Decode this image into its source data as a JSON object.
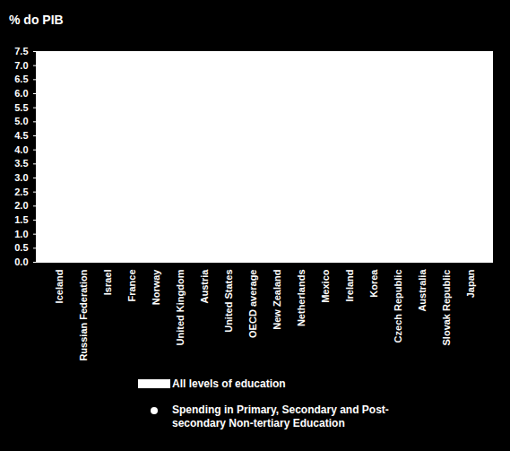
{
  "chart_data": {
    "type": "bar",
    "y_label": "% do PIB",
    "categories": [
      "Iceland",
      "Russian Federation",
      "Israel",
      "France",
      "Norway",
      "United Kingdom",
      "Austria",
      "United States",
      "OECD average",
      "New Zealand",
      "Netherlands",
      "Mexico",
      "Ireland",
      "Korea",
      "Czech Republic",
      "Australia",
      "Slovak Republic",
      "Japan"
    ],
    "series": [
      {
        "name": "All levels of education",
        "type": "bar",
        "color": "#ffffff",
        "values": [
          null,
          null,
          null,
          null,
          null,
          null,
          null,
          null,
          null,
          null,
          null,
          null,
          null,
          null,
          null,
          null,
          null,
          null
        ]
      },
      {
        "name": "Spending in Primary, Secondary and Post-secondary Non-tertiary Education",
        "type": "scatter",
        "marker": "circle",
        "color": "#ffffff",
        "values": [
          null,
          null,
          null,
          null,
          null,
          null,
          null,
          null,
          null,
          null,
          null,
          null,
          null,
          null,
          null,
          null,
          null,
          null
        ]
      }
    ],
    "ylim": [
      0,
      7.5
    ],
    "yticks": [
      {
        "value": 0,
        "label": "0.0"
      },
      0.5,
      {
        "value": 1,
        "label": "1.0"
      },
      1.5,
      {
        "value": 2,
        "label": "2.0"
      },
      2.5,
      {
        "value": 3,
        "label": "3.0"
      },
      3.5,
      {
        "value": 4,
        "label": "4.0"
      },
      4.5,
      {
        "value": 5,
        "label": "5.0"
      },
      5.5,
      {
        "value": 6,
        "label": "6.0"
      },
      6.5,
      {
        "value": 7,
        "label": "7.0"
      },
      7.5
    ],
    "grid": false
  }
}
